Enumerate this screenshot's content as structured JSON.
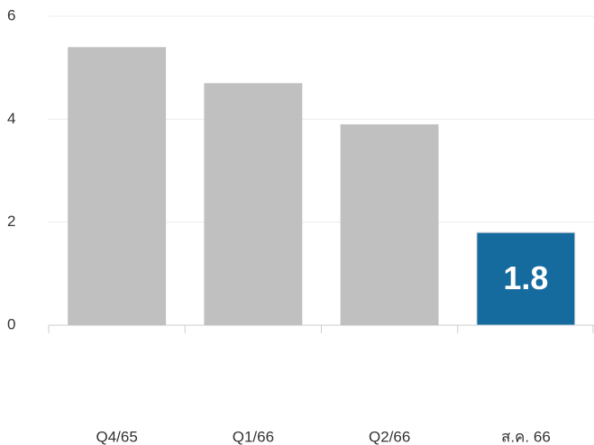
{
  "chart_data": {
    "type": "bar",
    "categories": [
      "Q4/65",
      "Q1/66",
      "Q2/66",
      "ส.ค. 66"
    ],
    "values": [
      5.4,
      4.7,
      3.9,
      1.8
    ],
    "value_labels": [
      null,
      null,
      null,
      "1.8"
    ],
    "colors": [
      "#c0c0c0",
      "#c0c0c0",
      "#c0c0c0",
      "#156a9e"
    ],
    "ylim": [
      0,
      6
    ],
    "yticks": [
      0,
      2,
      4,
      6
    ],
    "grid": true
  }
}
